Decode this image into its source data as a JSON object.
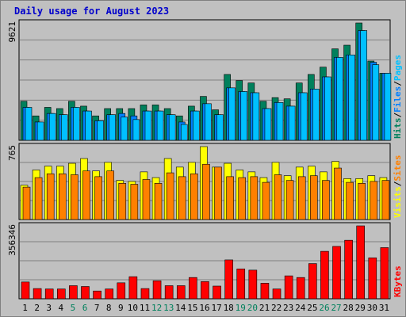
{
  "title": "Daily usage for August 2023",
  "colors": {
    "background": "#c0c0c0",
    "plot_bg": "#c0c0c0",
    "grid": "#808080",
    "hits": "#00805c",
    "files": "#0080ff",
    "pages": "#00c0ff",
    "visits": "#ffff00",
    "sites": "#ff8000",
    "kbytes": "#ff0000",
    "weekend_day": "#00805c",
    "weekday": "#000000",
    "title": "#0000cc"
  },
  "chart_data": [
    {
      "type": "bar",
      "name": "hits-files-pages",
      "categories": [
        "1",
        "2",
        "3",
        "4",
        "5",
        "6",
        "7",
        "8",
        "9",
        "10",
        "11",
        "12",
        "13",
        "14",
        "15",
        "16",
        "17",
        "18",
        "19",
        "20",
        "21",
        "22",
        "23",
        "24",
        "25",
        "26",
        "27",
        "28",
        "29",
        "30",
        "31"
      ],
      "max_label": "9621",
      "ymax": 9621,
      "right_label": [
        "Pages",
        "Files",
        "Hits"
      ],
      "series": [
        {
          "name": "Hits",
          "values": [
            3200,
            2000,
            2700,
            2600,
            3200,
            2800,
            2000,
            2600,
            2600,
            2600,
            2900,
            2900,
            2600,
            2000,
            2800,
            3600,
            2500,
            5400,
            4900,
            4700,
            3200,
            3500,
            3400,
            4700,
            5400,
            6000,
            7500,
            7800,
            9621,
            6500,
            5500
          ]
        },
        {
          "name": "Files",
          "values": [
            2700,
            1500,
            2200,
            2100,
            2700,
            2400,
            1600,
            2100,
            2200,
            2000,
            2400,
            2400,
            2100,
            1500,
            2400,
            3000,
            2100,
            4300,
            4000,
            3900,
            2600,
            3100,
            2800,
            3900,
            4200,
            5200,
            6800,
            7000,
            9000,
            6400,
            5500
          ]
        },
        {
          "name": "Pages",
          "values": [
            2700,
            1500,
            2200,
            2100,
            2700,
            2400,
            1600,
            2100,
            1900,
            1700,
            2400,
            2400,
            2100,
            1300,
            2400,
            3000,
            2100,
            4300,
            4000,
            3900,
            2600,
            3100,
            2800,
            3900,
            4200,
            5200,
            6800,
            7000,
            9000,
            6200,
            5500
          ]
        }
      ]
    },
    {
      "type": "bar",
      "name": "visits-sites",
      "categories": [
        "1",
        "2",
        "3",
        "4",
        "5",
        "6",
        "7",
        "8",
        "9",
        "10",
        "11",
        "12",
        "13",
        "14",
        "15",
        "16",
        "17",
        "18",
        "19",
        "20",
        "21",
        "22",
        "23",
        "24",
        "25",
        "26",
        "27",
        "28",
        "29",
        "30",
        "31"
      ],
      "max_label": "765",
      "ymax": 765,
      "right_label": [
        "Sites",
        "Visits"
      ],
      "series": [
        {
          "name": "Visits",
          "values": [
            360,
            520,
            560,
            560,
            590,
            640,
            510,
            600,
            410,
            400,
            500,
            440,
            640,
            550,
            600,
            765,
            550,
            590,
            520,
            500,
            440,
            600,
            460,
            550,
            560,
            500,
            610,
            430,
            430,
            460,
            440
          ]
        },
        {
          "name": "Sites",
          "values": [
            340,
            440,
            480,
            480,
            470,
            510,
            450,
            510,
            380,
            370,
            420,
            380,
            490,
            450,
            480,
            580,
            550,
            450,
            440,
            450,
            390,
            470,
            410,
            450,
            460,
            410,
            540,
            390,
            380,
            400,
            410
          ]
        }
      ]
    },
    {
      "type": "bar",
      "name": "kbytes",
      "categories": [
        "1",
        "2",
        "3",
        "4",
        "5",
        "6",
        "7",
        "8",
        "9",
        "10",
        "11",
        "12",
        "13",
        "14",
        "15",
        "16",
        "17",
        "18",
        "19",
        "20",
        "21",
        "22",
        "23",
        "24",
        "25",
        "26",
        "27",
        "28",
        "29",
        "30",
        "31"
      ],
      "max_label": "356346",
      "ymax": 356346,
      "right_label": [
        "KBytes"
      ],
      "series": [
        {
          "name": "KBytes",
          "values": [
            82000,
            50000,
            48000,
            48000,
            64000,
            60000,
            38000,
            48000,
            78000,
            108000,
            50000,
            88000,
            64000,
            64000,
            104000,
            84000,
            62000,
            190000,
            146000,
            140000,
            76000,
            48000,
            112000,
            104000,
            172000,
            232000,
            256000,
            286000,
            356346,
            200000,
            250000
          ]
        }
      ]
    }
  ]
}
